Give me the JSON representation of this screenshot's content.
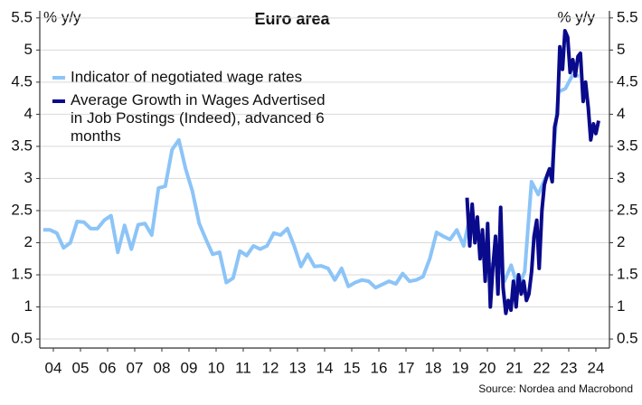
{
  "chart_data": {
    "type": "line",
    "title": "Euro area",
    "ylabel": "% y/y",
    "y2label": "% y/y",
    "source": "Source: Nordea and Macrobond",
    "xlim": [
      4,
      25
    ],
    "ylim": [
      0.36,
      5.61
    ],
    "yticks": [
      0.5,
      1.0,
      1.5,
      2.0,
      2.5,
      3.0,
      3.5,
      4.0,
      4.5,
      5.0,
      5.5
    ],
    "xticks": [
      {
        "value": 4.5,
        "label": "04"
      },
      {
        "value": 5.5,
        "label": "05"
      },
      {
        "value": 6.5,
        "label": "06"
      },
      {
        "value": 7.5,
        "label": "07"
      },
      {
        "value": 8.5,
        "label": "08"
      },
      {
        "value": 9.5,
        "label": "09"
      },
      {
        "value": 10.5,
        "label": "10"
      },
      {
        "value": 11.5,
        "label": "11"
      },
      {
        "value": 12.5,
        "label": "12"
      },
      {
        "value": 13.5,
        "label": "13"
      },
      {
        "value": 14.5,
        "label": "14"
      },
      {
        "value": 15.5,
        "label": "15"
      },
      {
        "value": 16.5,
        "label": "16"
      },
      {
        "value": 17.5,
        "label": "17"
      },
      {
        "value": 18.5,
        "label": "18"
      },
      {
        "value": 19.5,
        "label": "19"
      },
      {
        "value": 20.5,
        "label": "20"
      },
      {
        "value": 21.5,
        "label": "21"
      },
      {
        "value": 22.5,
        "label": "22"
      },
      {
        "value": 23.5,
        "label": "23"
      },
      {
        "value": 24.5,
        "label": "24"
      }
    ],
    "grid": true,
    "legend": "upper left",
    "series": [
      {
        "name": "Indicator of negotiated wage rates",
        "color": "#8cc4f7",
        "x": [
          4.125,
          4.375,
          4.625,
          4.875,
          5.125,
          5.375,
          5.625,
          5.875,
          6.125,
          6.375,
          6.625,
          6.875,
          7.125,
          7.375,
          7.625,
          7.875,
          8.125,
          8.375,
          8.625,
          8.875,
          9.125,
          9.375,
          9.625,
          9.875,
          10.125,
          10.375,
          10.625,
          10.875,
          11.125,
          11.375,
          11.625,
          11.875,
          12.125,
          12.375,
          12.625,
          12.875,
          13.125,
          13.375,
          13.625,
          13.875,
          14.125,
          14.375,
          14.625,
          14.875,
          15.125,
          15.375,
          15.625,
          15.875,
          16.125,
          16.375,
          16.625,
          16.875,
          17.125,
          17.375,
          17.625,
          17.875,
          18.125,
          18.375,
          18.625,
          18.875,
          19.125,
          19.375,
          19.625,
          19.875,
          20.125,
          20.375,
          20.625,
          20.875,
          21.125,
          21.375,
          21.625,
          21.875,
          22.125,
          22.375,
          22.625,
          22.875,
          23.125,
          23.375,
          23.625,
          23.875
        ],
        "values": [
          2.2,
          2.2,
          2.15,
          1.92,
          2.0,
          2.33,
          2.32,
          2.22,
          2.22,
          2.35,
          2.42,
          1.85,
          2.27,
          1.9,
          2.28,
          2.3,
          2.12,
          2.85,
          2.88,
          3.45,
          3.6,
          3.15,
          2.8,
          2.3,
          2.05,
          1.82,
          1.85,
          1.38,
          1.45,
          1.87,
          1.8,
          1.95,
          1.9,
          1.95,
          2.15,
          2.12,
          2.22,
          1.95,
          1.63,
          1.82,
          1.63,
          1.64,
          1.6,
          1.42,
          1.6,
          1.32,
          1.38,
          1.42,
          1.4,
          1.3,
          1.35,
          1.4,
          1.36,
          1.52,
          1.4,
          1.42,
          1.47,
          1.75,
          2.16,
          2.1,
          2.05,
          2.2,
          1.95,
          2.45,
          2.1,
          1.85,
          1.62,
          1.8,
          1.4,
          1.65,
          1.3,
          1.55,
          2.95,
          2.75,
          3.0,
          3.1,
          4.35,
          4.4,
          4.6,
          4.6
        ]
      },
      {
        "name": "Average Growth in Wages Advertised in Job Postings (Indeed), advanced 6 months",
        "color": "#0a0a8c",
        "x": [
          19.75,
          19.85,
          19.94,
          20.04,
          20.13,
          20.23,
          20.32,
          20.42,
          20.51,
          20.61,
          20.7,
          20.8,
          20.89,
          20.99,
          21.08,
          21.18,
          21.27,
          21.37,
          21.46,
          21.56,
          21.65,
          21.75,
          21.84,
          21.94,
          22.03,
          22.13,
          22.22,
          22.32,
          22.41,
          22.51,
          22.6,
          22.7,
          22.79,
          22.89,
          22.98,
          23.08,
          23.17,
          23.27,
          23.36,
          23.46,
          23.55,
          23.65,
          23.74,
          23.84,
          23.93,
          24.03,
          24.12,
          24.22,
          24.31,
          24.41,
          24.5,
          24.6
        ],
        "values": [
          2.7,
          1.95,
          2.6,
          2.0,
          2.4,
          1.75,
          2.2,
          1.4,
          2.3,
          1.0,
          1.6,
          2.1,
          1.2,
          2.55,
          1.3,
          0.9,
          1.1,
          0.95,
          1.4,
          1.0,
          1.5,
          1.2,
          1.4,
          1.1,
          1.2,
          1.55,
          2.1,
          2.35,
          1.6,
          2.5,
          2.9,
          3.05,
          3.15,
          2.95,
          3.8,
          4.0,
          5.05,
          4.7,
          5.3,
          5.2,
          4.65,
          4.85,
          4.6,
          4.9,
          4.95,
          4.2,
          4.5,
          4.1,
          3.6,
          3.85,
          3.7,
          3.9
        ]
      }
    ]
  }
}
